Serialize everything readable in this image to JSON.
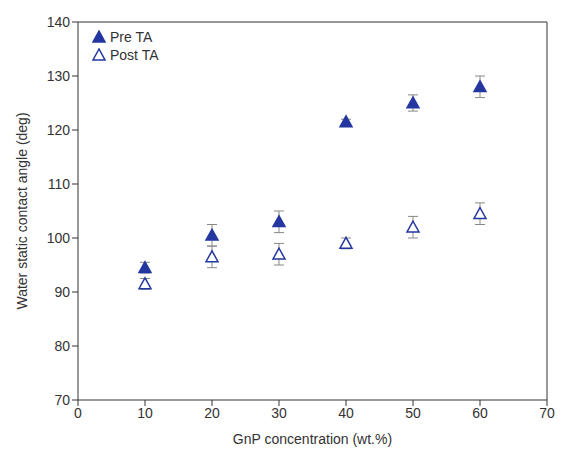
{
  "chart_data": {
    "type": "scatter",
    "xlabel": "GnP concentration (wt.%)",
    "ylabel": "Water static contact angle (deg)",
    "xlim": [
      0,
      70
    ],
    "xticks": [
      0,
      10,
      20,
      30,
      40,
      50,
      60,
      70
    ],
    "ylim": [
      70,
      140
    ],
    "yticks": [
      70,
      80,
      90,
      100,
      110,
      120,
      130,
      140
    ],
    "grid": false,
    "legend": "upper left",
    "series": [
      {
        "name": "Pre TA",
        "color": "#2436a0",
        "marker": "triangle",
        "x": [
          10,
          20,
          30,
          40,
          50,
          60
        ],
        "values": [
          94.5,
          100.5,
          103,
          121.5,
          125,
          128
        ],
        "error": [
          1,
          2,
          2,
          0.5,
          1.5,
          2
        ]
      },
      {
        "name": "Post TA",
        "color": "#2436a0",
        "marker": "triangle_open",
        "x": [
          10,
          20,
          30,
          40,
          50,
          60
        ],
        "values": [
          91.5,
          96.5,
          97,
          99,
          102,
          104.5
        ],
        "error": [
          1,
          2,
          2,
          1,
          2,
          2
        ]
      }
    ]
  }
}
